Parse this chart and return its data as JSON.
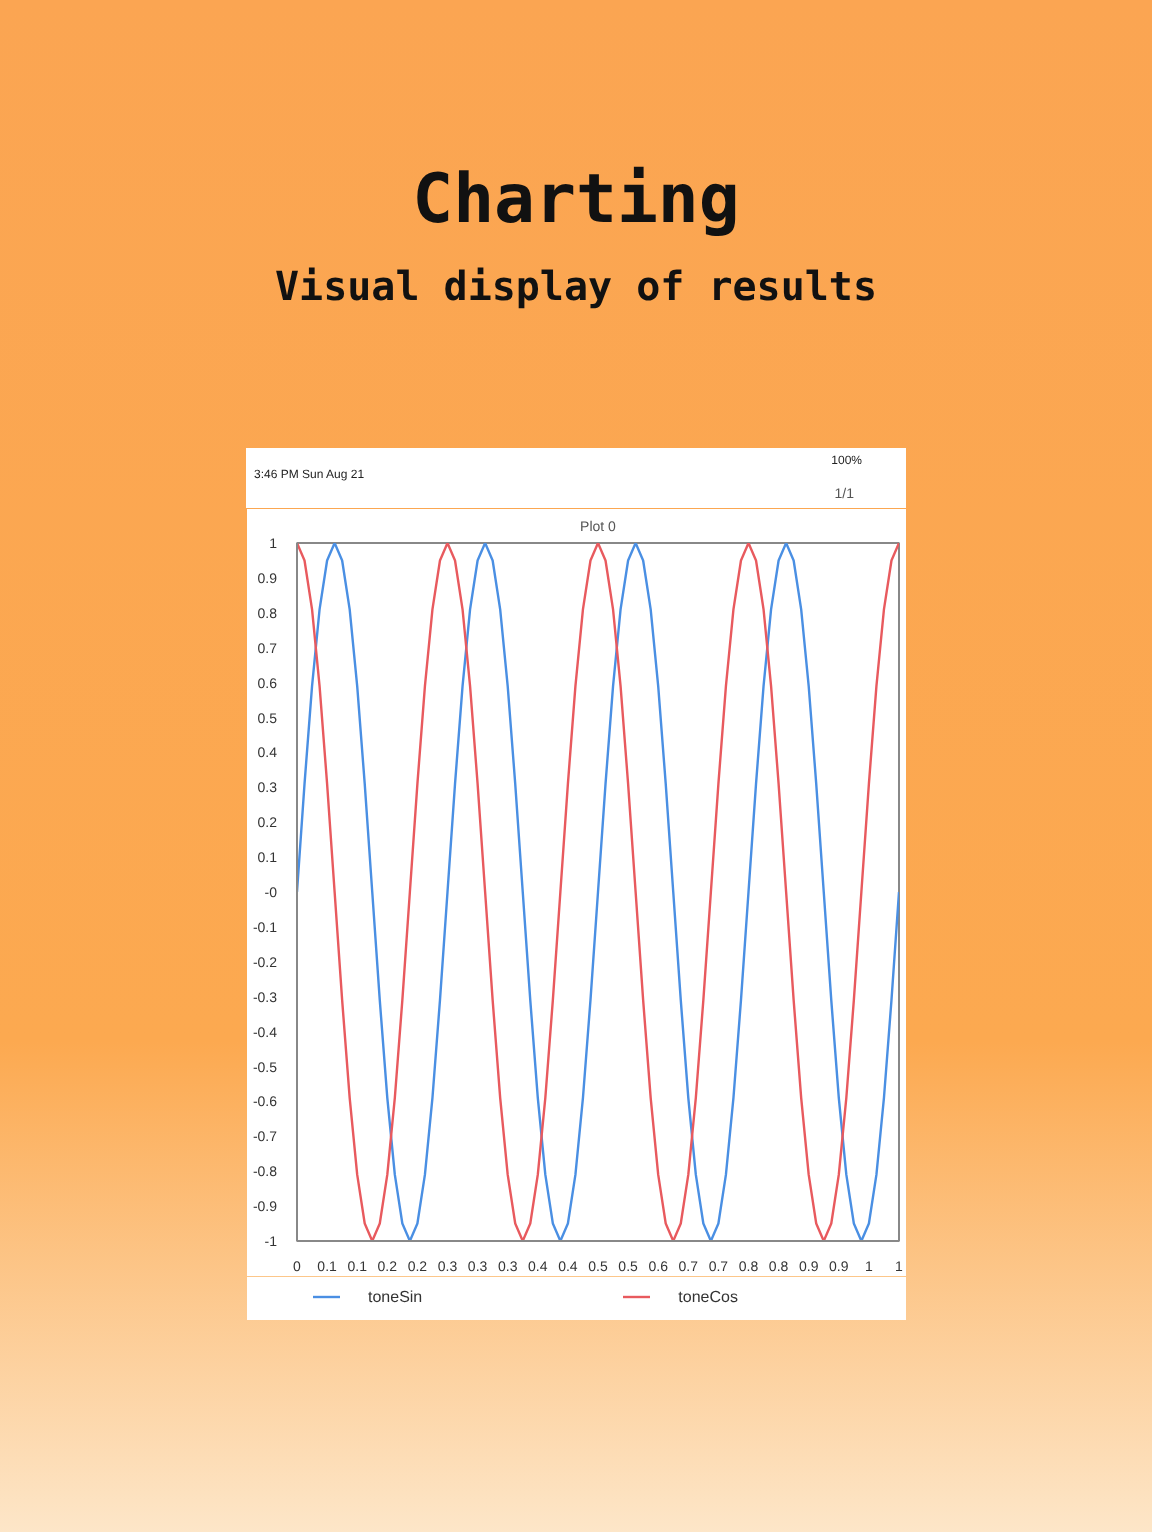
{
  "chart_data": {
    "type": "line",
    "title": "Plot 0",
    "annotations": [
      "Charting",
      "Visual display of results",
      "3:46 PM  Sun Aug 21",
      "100%",
      "1/1"
    ],
    "x": [
      0,
      0.0125,
      0.025,
      0.0375,
      0.05,
      0.0625,
      0.075,
      0.0875,
      0.1,
      0.1125,
      0.125,
      0.1375,
      0.15,
      0.1625,
      0.175,
      0.1875,
      0.2,
      0.2125,
      0.225,
      0.2375,
      0.25,
      0.2625,
      0.275,
      0.2875,
      0.3,
      0.3125,
      0.325,
      0.3375,
      0.35,
      0.3625,
      0.375,
      0.3875,
      0.4,
      0.4125,
      0.425,
      0.4375,
      0.45,
      0.4625,
      0.475,
      0.4875,
      0.5,
      0.5125,
      0.525,
      0.5375,
      0.55,
      0.5625,
      0.575,
      0.5875,
      0.6,
      0.6125,
      0.625,
      0.6375,
      0.65,
      0.6625,
      0.675,
      0.6875,
      0.7,
      0.7125,
      0.725,
      0.7375,
      0.75,
      0.7625,
      0.775,
      0.7875,
      0.8,
      0.8125,
      0.825,
      0.8375,
      0.85,
      0.8625,
      0.875,
      0.8875,
      0.9,
      0.9125,
      0.925,
      0.9375,
      0.95,
      0.9625,
      0.975,
      0.9875,
      1
    ],
    "series": [
      {
        "name": "toneSin",
        "color": "#4a8fe3",
        "values": [
          0,
          0.31,
          0.59,
          0.81,
          0.95,
          1,
          0.95,
          0.81,
          0.59,
          0.31,
          0,
          -0.31,
          -0.59,
          -0.81,
          -0.95,
          -1,
          -0.95,
          -0.81,
          -0.59,
          -0.31,
          0,
          0.31,
          0.59,
          0.81,
          0.95,
          1,
          0.95,
          0.81,
          0.59,
          0.31,
          0,
          -0.31,
          -0.59,
          -0.81,
          -0.95,
          -1,
          -0.95,
          -0.81,
          -0.59,
          -0.31,
          0,
          0.31,
          0.59,
          0.81,
          0.95,
          1,
          0.95,
          0.81,
          0.59,
          0.31,
          0,
          -0.31,
          -0.59,
          -0.81,
          -0.95,
          -1,
          -0.95,
          -0.81,
          -0.59,
          -0.31,
          0,
          0.31,
          0.59,
          0.81,
          0.95,
          1,
          0.95,
          0.81,
          0.59,
          0.31,
          0,
          -0.31,
          -0.59,
          -0.81,
          -0.95,
          -1,
          -0.95,
          -0.81,
          -0.59,
          -0.31,
          0
        ]
      },
      {
        "name": "toneCos",
        "color": "#e85a5e",
        "values": [
          1,
          0.95,
          0.81,
          0.59,
          0.31,
          0,
          -0.31,
          -0.59,
          -0.81,
          -0.95,
          -1,
          -0.95,
          -0.81,
          -0.59,
          -0.31,
          0,
          0.31,
          0.59,
          0.81,
          0.95,
          1,
          0.95,
          0.81,
          0.59,
          0.31,
          0,
          -0.31,
          -0.59,
          -0.81,
          -0.95,
          -1,
          -0.95,
          -0.81,
          -0.59,
          -0.31,
          0,
          0.31,
          0.59,
          0.81,
          0.95,
          1,
          0.95,
          0.81,
          0.59,
          0.31,
          0,
          -0.31,
          -0.59,
          -0.81,
          -0.95,
          -1,
          -0.95,
          -0.81,
          -0.59,
          -0.31,
          0,
          0.31,
          0.59,
          0.81,
          0.95,
          1,
          0.95,
          0.81,
          0.59,
          0.31,
          0,
          -0.31,
          -0.59,
          -0.81,
          -0.95,
          -1,
          -0.95,
          -0.81,
          -0.59,
          -0.31,
          0,
          0.31,
          0.59,
          0.81,
          0.95,
          1
        ]
      }
    ],
    "xlim": [
      0,
      1
    ],
    "ylim": [
      -1,
      1
    ],
    "xticks": [
      0,
      {
        "value": 0.05,
        "label": "0.1"
      },
      0.1,
      {
        "value": 0.15,
        "label": "0.2"
      },
      0.2,
      {
        "value": 0.25,
        "label": "0.3"
      },
      0.3,
      {
        "value": 0.35,
        "label": "0.3"
      },
      0.4,
      {
        "value": 0.45,
        "label": "0.4"
      },
      0.5,
      {
        "value": 0.55,
        "label": "0.5"
      },
      0.6,
      {
        "value": 0.65,
        "label": "0.7"
      },
      0.7,
      {
        "value": 0.75,
        "label": "0.8"
      },
      0.8,
      {
        "value": 0.85,
        "label": "0.9"
      },
      0.9,
      {
        "value": 0.95,
        "label": "1"
      },
      1
    ],
    "yticks": [
      -1,
      -0.9,
      -0.8,
      -0.7,
      -0.6,
      -0.5,
      -0.4,
      -0.3,
      -0.2,
      -0.1,
      {
        "value": 0,
        "label": "-0"
      },
      0.1,
      0.2,
      0.3,
      0.4,
      0.5,
      0.6,
      0.7,
      0.8,
      0.9,
      1
    ],
    "grid": false,
    "legend": "bottom",
    "marker": "none",
    "line_style": "solid"
  }
}
